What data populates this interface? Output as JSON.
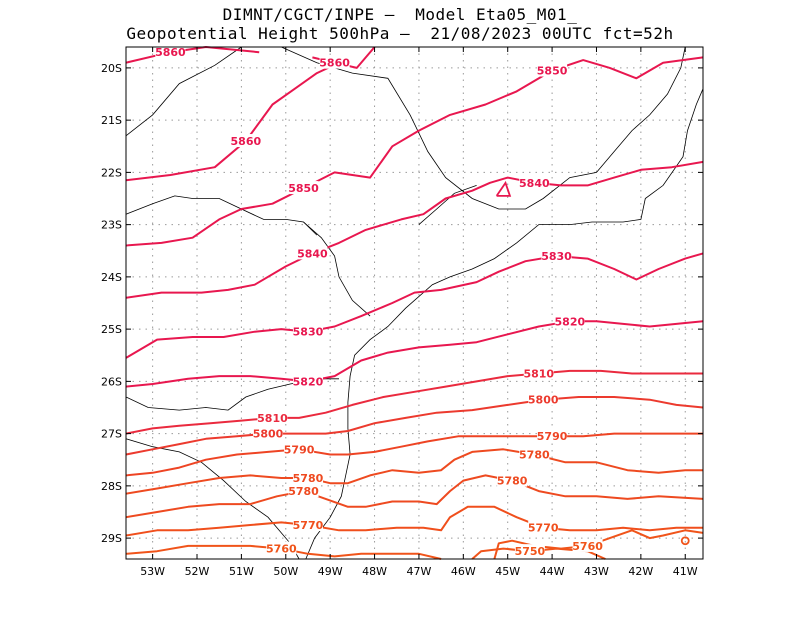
{
  "title": {
    "line1": "DIMNT/CGCT/INPE —  Model Eta05_M01_",
    "line2": "Geopotential Height 500hPa —  21/08/2023 00UTC fct=52h"
  },
  "chart_data": {
    "type": "contour-map",
    "variable": "Geopotential Height 500hPa",
    "units": "m",
    "lon_range": [
      -53.6,
      -40.6
    ],
    "lat_range": [
      -29.4,
      -19.6
    ],
    "grid": true,
    "x_tick_labels": [
      "53W",
      "52W",
      "51W",
      "50W",
      "49W",
      "48W",
      "47W",
      "46W",
      "45W",
      "44W",
      "43W",
      "42W",
      "41W"
    ],
    "y_tick_labels": [
      "20S",
      "21S",
      "22S",
      "23S",
      "24S",
      "25S",
      "26S",
      "27S",
      "28S",
      "29S"
    ],
    "contour_labels": [
      "5860",
      "5850",
      "5840",
      "5830",
      "5820",
      "5810",
      "5800",
      "5790",
      "5780",
      "5770",
      "5760",
      "5750"
    ],
    "contours": [
      {
        "value": 5860,
        "color": "#e8174f",
        "points": [
          [
            -53.6,
            -19.9
          ],
          [
            -52.6,
            -19.7
          ],
          [
            -51.8,
            -19.6
          ],
          [
            -50.6,
            -19.7
          ]
        ]
      },
      {
        "value": 5860,
        "color": "#e8174f",
        "points": [
          [
            -49.4,
            -19.8
          ],
          [
            -48.9,
            -19.9
          ],
          [
            -48.4,
            -20.0
          ],
          [
            -48.0,
            -19.6
          ]
        ]
      },
      {
        "value": 5860,
        "color": "#e8174f",
        "points": [
          [
            -53.6,
            -22.15
          ],
          [
            -52.6,
            -22.05
          ],
          [
            -51.6,
            -21.9
          ],
          [
            -50.9,
            -21.4
          ],
          [
            -50.3,
            -20.7
          ],
          [
            -49.8,
            -20.4
          ],
          [
            -49.3,
            -20.1
          ],
          [
            -48.8,
            -19.9
          ]
        ]
      },
      {
        "value": 5850,
        "color": "#e8174f",
        "points": [
          [
            -53.6,
            -23.4
          ],
          [
            -52.8,
            -23.35
          ],
          [
            -52.1,
            -23.25
          ],
          [
            -51.5,
            -22.9
          ],
          [
            -51.0,
            -22.7
          ],
          [
            -50.3,
            -22.6
          ],
          [
            -49.6,
            -22.3
          ],
          [
            -48.9,
            -22.0
          ],
          [
            -48.5,
            -22.05
          ],
          [
            -48.1,
            -22.1
          ],
          [
            -47.6,
            -21.5
          ],
          [
            -47.0,
            -21.2
          ],
          [
            -46.3,
            -20.9
          ],
          [
            -45.5,
            -20.7
          ],
          [
            -44.8,
            -20.45
          ],
          [
            -44.0,
            -20.05
          ],
          [
            -43.3,
            -19.85
          ],
          [
            -42.7,
            -20.0
          ],
          [
            -42.1,
            -20.2
          ],
          [
            -41.5,
            -19.9
          ],
          [
            -40.6,
            -19.8
          ]
        ]
      },
      {
        "value": 5840,
        "color": "#e8174f",
        "points": [
          [
            -53.6,
            -24.4
          ],
          [
            -52.8,
            -24.3
          ],
          [
            -51.9,
            -24.3
          ],
          [
            -51.3,
            -24.25
          ],
          [
            -50.7,
            -24.15
          ],
          [
            -50.0,
            -23.8
          ],
          [
            -49.4,
            -23.55
          ],
          [
            -48.8,
            -23.35
          ],
          [
            -48.2,
            -23.1
          ],
          [
            -47.4,
            -22.9
          ],
          [
            -46.9,
            -22.8
          ],
          [
            -46.4,
            -22.5
          ],
          [
            -45.8,
            -22.35
          ],
          [
            -45.4,
            -22.2
          ],
          [
            -45.0,
            -22.1
          ],
          [
            -44.4,
            -22.2
          ],
          [
            -43.8,
            -22.25
          ],
          [
            -43.2,
            -22.25
          ],
          [
            -42.6,
            -22.1
          ],
          [
            -42.0,
            -21.95
          ],
          [
            -41.3,
            -21.9
          ],
          [
            -40.6,
            -21.8
          ]
        ]
      },
      {
        "value": 5830,
        "color": "#e8174f",
        "points": [
          [
            -53.6,
            -25.55
          ],
          [
            -52.9,
            -25.2
          ],
          [
            -52.1,
            -25.15
          ],
          [
            -51.4,
            -25.15
          ],
          [
            -50.7,
            -25.05
          ],
          [
            -50.1,
            -25.0
          ],
          [
            -49.5,
            -25.05
          ],
          [
            -48.9,
            -24.95
          ],
          [
            -48.3,
            -24.75
          ],
          [
            -47.6,
            -24.5
          ],
          [
            -47.1,
            -24.3
          ],
          [
            -46.5,
            -24.25
          ],
          [
            -45.7,
            -24.1
          ],
          [
            -45.2,
            -23.9
          ],
          [
            -44.6,
            -23.7
          ],
          [
            -43.9,
            -23.6
          ],
          [
            -43.2,
            -23.65
          ],
          [
            -42.6,
            -23.85
          ],
          [
            -42.1,
            -24.05
          ],
          [
            -41.6,
            -23.85
          ],
          [
            -41.0,
            -23.65
          ],
          [
            -40.6,
            -23.55
          ]
        ]
      },
      {
        "value": 5820,
        "color": "#e8174f",
        "points": [
          [
            -53.6,
            -26.1
          ],
          [
            -53.0,
            -26.05
          ],
          [
            -52.2,
            -25.95
          ],
          [
            -51.5,
            -25.9
          ],
          [
            -50.8,
            -25.9
          ],
          [
            -50.1,
            -25.95
          ],
          [
            -49.5,
            -26.0
          ],
          [
            -48.9,
            -25.9
          ],
          [
            -48.3,
            -25.6
          ],
          [
            -47.7,
            -25.45
          ],
          [
            -47.0,
            -25.35
          ],
          [
            -46.3,
            -25.3
          ],
          [
            -45.7,
            -25.25
          ],
          [
            -45.0,
            -25.1
          ],
          [
            -44.3,
            -24.95
          ],
          [
            -43.6,
            -24.85
          ],
          [
            -43.0,
            -24.85
          ],
          [
            -42.4,
            -24.9
          ],
          [
            -41.8,
            -24.95
          ],
          [
            -41.2,
            -24.9
          ],
          [
            -40.6,
            -24.85
          ]
        ]
      },
      {
        "value": 5810,
        "color": "#ea2a3e",
        "points": [
          [
            -53.6,
            -27.0
          ],
          [
            -53.0,
            -26.9
          ],
          [
            -52.4,
            -26.85
          ],
          [
            -51.7,
            -26.8
          ],
          [
            -51.0,
            -26.75
          ],
          [
            -50.3,
            -26.7
          ],
          [
            -49.7,
            -26.7
          ],
          [
            -49.1,
            -26.6
          ],
          [
            -48.5,
            -26.45
          ],
          [
            -47.8,
            -26.3
          ],
          [
            -47.1,
            -26.2
          ],
          [
            -46.4,
            -26.1
          ],
          [
            -45.7,
            -26.0
          ],
          [
            -45.0,
            -25.9
          ],
          [
            -44.3,
            -25.85
          ],
          [
            -43.6,
            -25.8
          ],
          [
            -42.9,
            -25.8
          ],
          [
            -42.2,
            -25.85
          ],
          [
            -41.4,
            -25.85
          ],
          [
            -40.6,
            -25.85
          ]
        ]
      },
      {
        "value": 5800,
        "color": "#ec3a2e",
        "points": [
          [
            -53.6,
            -27.4
          ],
          [
            -53.0,
            -27.3
          ],
          [
            -52.4,
            -27.2
          ],
          [
            -51.8,
            -27.1
          ],
          [
            -51.1,
            -27.05
          ],
          [
            -50.4,
            -27.0
          ],
          [
            -49.7,
            -27.0
          ],
          [
            -49.1,
            -27.0
          ],
          [
            -48.6,
            -26.95
          ],
          [
            -48.0,
            -26.8
          ],
          [
            -47.3,
            -26.7
          ],
          [
            -46.6,
            -26.6
          ],
          [
            -45.8,
            -26.55
          ],
          [
            -45.0,
            -26.45
          ],
          [
            -44.2,
            -26.35
          ],
          [
            -43.4,
            -26.3
          ],
          [
            -42.6,
            -26.3
          ],
          [
            -41.8,
            -26.35
          ],
          [
            -41.2,
            -26.45
          ],
          [
            -40.6,
            -26.5
          ]
        ]
      },
      {
        "value": 5790,
        "color": "#ee4424",
        "points": [
          [
            -53.6,
            -27.8
          ],
          [
            -53.0,
            -27.75
          ],
          [
            -52.4,
            -27.65
          ],
          [
            -51.8,
            -27.5
          ],
          [
            -51.1,
            -27.4
          ],
          [
            -50.4,
            -27.35
          ],
          [
            -49.7,
            -27.3
          ],
          [
            -49.0,
            -27.4
          ],
          [
            -48.6,
            -27.4
          ],
          [
            -48.0,
            -27.35
          ],
          [
            -47.4,
            -27.25
          ],
          [
            -46.8,
            -27.15
          ],
          [
            -46.1,
            -27.05
          ],
          [
            -45.4,
            -27.05
          ],
          [
            -44.7,
            -27.05
          ],
          [
            -44.0,
            -27.05
          ],
          [
            -43.3,
            -27.05
          ],
          [
            -42.6,
            -27.0
          ],
          [
            -41.9,
            -27.0
          ],
          [
            -41.2,
            -27.0
          ],
          [
            -40.6,
            -27.0
          ]
        ]
      },
      {
        "value": 5780,
        "color": "#ee4a20",
        "points": [
          [
            -53.6,
            -28.15
          ],
          [
            -52.9,
            -28.05
          ],
          [
            -52.2,
            -27.95
          ],
          [
            -51.5,
            -27.85
          ],
          [
            -50.8,
            -27.8
          ],
          [
            -50.1,
            -27.85
          ],
          [
            -49.5,
            -27.85
          ],
          [
            -49.0,
            -27.95
          ],
          [
            -48.6,
            -27.95
          ],
          [
            -48.1,
            -27.8
          ],
          [
            -47.6,
            -27.7
          ],
          [
            -47.0,
            -27.75
          ],
          [
            -46.5,
            -27.7
          ],
          [
            -46.2,
            -27.5
          ],
          [
            -45.8,
            -27.35
          ],
          [
            -45.1,
            -27.3
          ],
          [
            -44.4,
            -27.4
          ],
          [
            -43.7,
            -27.55
          ],
          [
            -43.0,
            -27.55
          ],
          [
            -42.3,
            -27.7
          ],
          [
            -41.6,
            -27.75
          ],
          [
            -41.0,
            -27.7
          ],
          [
            -40.6,
            -27.7
          ]
        ]
      },
      {
        "value": 5780,
        "color": "#ee4a20",
        "points": [
          [
            -53.6,
            -28.6
          ],
          [
            -52.9,
            -28.5
          ],
          [
            -52.2,
            -28.4
          ],
          [
            -51.5,
            -28.35
          ],
          [
            -50.8,
            -28.35
          ],
          [
            -50.2,
            -28.2
          ],
          [
            -49.6,
            -28.1
          ],
          [
            -49.1,
            -28.25
          ],
          [
            -48.6,
            -28.4
          ],
          [
            -48.2,
            -28.4
          ],
          [
            -47.6,
            -28.3
          ],
          [
            -47.0,
            -28.3
          ],
          [
            -46.6,
            -28.35
          ],
          [
            -46.3,
            -28.1
          ],
          [
            -46.0,
            -27.9
          ],
          [
            -45.5,
            -27.8
          ],
          [
            -44.9,
            -27.9
          ],
          [
            -44.3,
            -28.1
          ],
          [
            -43.7,
            -28.2
          ],
          [
            -43.0,
            -28.2
          ],
          [
            -42.3,
            -28.25
          ],
          [
            -41.6,
            -28.2
          ],
          [
            -40.6,
            -28.25
          ]
        ]
      },
      {
        "value": 5770,
        "color": "#f04f1c",
        "points": [
          [
            -53.6,
            -28.95
          ],
          [
            -52.9,
            -28.85
          ],
          [
            -52.2,
            -28.85
          ],
          [
            -51.5,
            -28.8
          ],
          [
            -50.8,
            -28.75
          ],
          [
            -50.1,
            -28.7
          ],
          [
            -49.5,
            -28.75
          ],
          [
            -48.8,
            -28.85
          ],
          [
            -48.2,
            -28.85
          ],
          [
            -47.5,
            -28.8
          ],
          [
            -46.9,
            -28.8
          ],
          [
            -46.5,
            -28.85
          ],
          [
            -46.3,
            -28.6
          ],
          [
            -45.9,
            -28.4
          ],
          [
            -45.3,
            -28.4
          ],
          [
            -44.8,
            -28.6
          ],
          [
            -44.2,
            -28.8
          ],
          [
            -43.6,
            -28.85
          ],
          [
            -43.0,
            -28.85
          ],
          [
            -42.4,
            -28.8
          ],
          [
            -41.8,
            -28.85
          ],
          [
            -41.2,
            -28.8
          ],
          [
            -40.6,
            -28.8
          ]
        ]
      },
      {
        "value": 5760,
        "color": "#f0541a",
        "points": [
          [
            -53.6,
            -29.3
          ],
          [
            -52.9,
            -29.25
          ],
          [
            -52.2,
            -29.15
          ],
          [
            -51.5,
            -29.15
          ],
          [
            -50.8,
            -29.15
          ],
          [
            -50.1,
            -29.2
          ],
          [
            -49.5,
            -29.3
          ],
          [
            -48.9,
            -29.35
          ],
          [
            -48.3,
            -29.3
          ],
          [
            -47.6,
            -29.3
          ],
          [
            -47.0,
            -29.3
          ],
          [
            -46.5,
            -29.4
          ]
        ]
      },
      {
        "value": 5760,
        "color": "#f0541a",
        "points": [
          [
            -45.3,
            -29.4
          ],
          [
            -45.2,
            -29.1
          ],
          [
            -44.9,
            -29.05
          ],
          [
            -44.4,
            -29.15
          ],
          [
            -43.8,
            -29.2
          ],
          [
            -43.2,
            -29.15
          ],
          [
            -42.7,
            -29.0
          ],
          [
            -42.2,
            -28.85
          ],
          [
            -41.8,
            -29.0
          ],
          [
            -41.5,
            -28.95
          ],
          [
            -41.0,
            -28.85
          ],
          [
            -40.6,
            -28.9
          ]
        ]
      },
      {
        "value": 5750,
        "color": "#f0541a",
        "points": [
          [
            -45.8,
            -29.4
          ],
          [
            -45.6,
            -29.25
          ],
          [
            -45.1,
            -29.2
          ],
          [
            -44.5,
            -29.25
          ],
          [
            -43.9,
            -29.2
          ],
          [
            -43.2,
            -29.25
          ],
          [
            -42.8,
            -29.4
          ]
        ]
      }
    ]
  }
}
